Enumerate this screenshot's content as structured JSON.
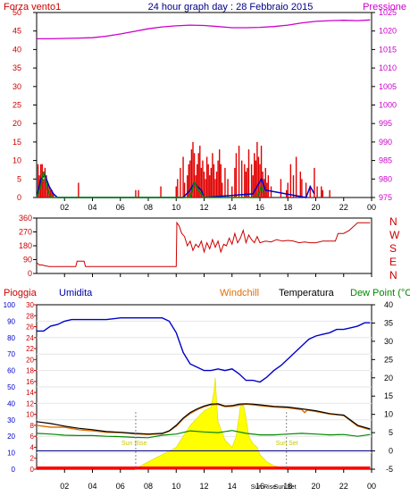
{
  "title": "24 hour graph day : 28 Febbraio 2015",
  "colors": {
    "wind": "#e00000",
    "gust": "#0000cc",
    "gust2": "#008800",
    "pressure": "#cc00cc",
    "direction": "#cc0000",
    "rain": "#ff0000",
    "humidity": "#0000cc",
    "windchill": "#e07000",
    "temperature": "#000000",
    "dewpoint": "#008800",
    "solar": "#ffff00",
    "frame": "#000000",
    "grid": "#c8c8c8",
    "baseline": "#000088"
  },
  "chart_data": [
    {
      "type": "bar",
      "title": "24 hour graph day : 28 Febbraio 2015",
      "left_label": "Forza vento1",
      "right_label": "Pressione",
      "hours": [
        "02",
        "04",
        "06",
        "08",
        "10",
        "12",
        "14",
        "16",
        "18",
        "20",
        "22",
        "00"
      ],
      "left_ticks": [
        "0",
        "5",
        "10",
        "15",
        "20",
        "25",
        "30",
        "35",
        "40",
        "45",
        "50"
      ],
      "right_ticks": [
        "975",
        "980",
        "985",
        "990",
        "995",
        "1000",
        "1005",
        "1010",
        "1015",
        "1020",
        "1025"
      ],
      "ylim_left": [
        0,
        50
      ],
      "ylim_right": [
        975,
        1025
      ],
      "series": [
        {
          "name": "Forza vento1",
          "kind": "bars",
          "x": [
            0.1,
            0.2,
            0.3,
            0.4,
            0.5,
            0.6,
            0.7,
            0.8,
            0.9,
            1.0,
            1.1,
            1.2,
            3.0,
            7.1,
            7.3,
            8.9,
            10.0,
            10.1,
            10.3,
            10.5,
            10.6,
            10.8,
            10.9,
            11.0,
            11.1,
            11.2,
            11.3,
            11.4,
            11.5,
            11.6,
            11.7,
            11.8,
            11.9,
            12.0,
            12.1,
            12.2,
            12.3,
            12.4,
            12.5,
            12.6,
            12.7,
            12.8,
            12.9,
            13.0,
            13.1,
            13.2,
            13.3,
            13.5,
            13.7,
            14.0,
            14.2,
            14.3,
            14.5,
            14.7,
            14.9,
            15.0,
            15.1,
            15.2,
            15.4,
            15.5,
            15.6,
            15.7,
            15.8,
            15.9,
            16.0,
            16.1,
            16.2,
            16.3,
            16.4,
            16.5,
            16.6,
            16.8,
            17.5,
            17.9,
            18.0,
            18.2,
            18.4,
            18.6,
            18.9,
            19.0,
            19.3,
            19.6,
            19.9,
            20.1,
            20.4,
            20.5,
            21.0
          ],
          "values": [
            9,
            6,
            9,
            9,
            5,
            8,
            6,
            4,
            3,
            2,
            2,
            1,
            4,
            2,
            2,
            3,
            3,
            5,
            8,
            11,
            4,
            6,
            9,
            10,
            13,
            15,
            12,
            6,
            9,
            12,
            14,
            8,
            10,
            7,
            5,
            11,
            9,
            6,
            8,
            12,
            9,
            5,
            7,
            10,
            13,
            9,
            4,
            8,
            5,
            3,
            8,
            12,
            14,
            10,
            9,
            7,
            8,
            13,
            9,
            6,
            12,
            10,
            15,
            11,
            9,
            14,
            7,
            5,
            8,
            4,
            6,
            3,
            5,
            2,
            4,
            9,
            6,
            11,
            7,
            5,
            4,
            3,
            8,
            3,
            3,
            2,
            2
          ]
        },
        {
          "name": "Gust",
          "kind": "line",
          "x": [
            0,
            0.3,
            0.6,
            0.9,
            1.2,
            1.5,
            10.5,
            11.0,
            11.3,
            11.5,
            11.8,
            12.0,
            15.5,
            15.8,
            16.1,
            16.4,
            19.3,
            19.6,
            19.9
          ],
          "values": [
            0,
            5,
            6,
            3,
            1,
            0,
            0,
            2,
            4,
            3,
            2,
            0,
            1,
            3,
            5,
            2,
            0,
            3,
            1
          ]
        },
        {
          "name": "Gust2",
          "kind": "line",
          "x": [
            0,
            0.3,
            0.5,
            0.8,
            1.0,
            11.0,
            11.3,
            11.6,
            12.0,
            15.8,
            16.1,
            16.3
          ],
          "values": [
            0,
            3,
            7,
            2,
            0,
            0,
            4,
            2,
            0,
            0,
            3,
            1
          ]
        },
        {
          "name": "Pressione",
          "kind": "line",
          "x": [
            0,
            1,
            2,
            3,
            4,
            5,
            6,
            7,
            8,
            9,
            10,
            11,
            12,
            13,
            14,
            15,
            16,
            17,
            18,
            19,
            20,
            21,
            22,
            23,
            23.9
          ],
          "values": [
            1017.9,
            1017.9,
            1018.0,
            1018.1,
            1018.2,
            1018.6,
            1019.2,
            1019.9,
            1020.6,
            1021.1,
            1021.4,
            1021.6,
            1021.5,
            1021.2,
            1020.9,
            1020.9,
            1021.0,
            1021.2,
            1021.6,
            1022.2,
            1022.6,
            1022.8,
            1022.9,
            1022.8,
            1023.0
          ]
        }
      ]
    },
    {
      "type": "line",
      "title": "",
      "left_ticks": [
        "0",
        "90",
        "180",
        "270",
        "360"
      ],
      "right_ticks": [
        "N",
        "W",
        "S",
        "E",
        "N"
      ],
      "hours": [
        "02",
        "04",
        "06",
        "08",
        "10",
        "12",
        "14",
        "16",
        "18",
        "20",
        "22",
        "00"
      ],
      "ylim": [
        0,
        360
      ],
      "series": [
        {
          "name": "Direction",
          "x": [
            0,
            0.2,
            0.4,
            0.6,
            0.9,
            1.2,
            2.0,
            2.8,
            2.9,
            3.0,
            3.4,
            3.5,
            4.0,
            5.0,
            6.0,
            7.0,
            8.0,
            9.0,
            10.0,
            10.05,
            10.2,
            10.4,
            10.6,
            10.8,
            11.0,
            11.2,
            11.4,
            11.6,
            11.8,
            12.0,
            12.2,
            12.4,
            12.6,
            12.8,
            13.0,
            13.2,
            13.4,
            13.6,
            13.8,
            14.0,
            14.2,
            14.4,
            14.6,
            14.8,
            15.0,
            15.2,
            15.4,
            15.6,
            15.8,
            16.0,
            16.4,
            16.8,
            17.2,
            17.6,
            18.0,
            18.4,
            18.8,
            19.2,
            19.6,
            20.0,
            20.5,
            21.0,
            21.4,
            21.6,
            22.0,
            22.4,
            23.0,
            23.9
          ],
          "values": [
            70,
            55,
            55,
            50,
            45,
            45,
            45,
            45,
            80,
            80,
            80,
            45,
            45,
            45,
            45,
            45,
            45,
            45,
            45,
            330,
            310,
            260,
            240,
            180,
            210,
            150,
            190,
            170,
            210,
            140,
            200,
            160,
            220,
            170,
            210,
            140,
            190,
            180,
            230,
            190,
            260,
            200,
            230,
            280,
            200,
            250,
            220,
            200,
            240,
            200,
            210,
            205,
            220,
            210,
            215,
            210,
            200,
            205,
            200,
            200,
            210,
            210,
            210,
            260,
            260,
            280,
            330,
            330
          ]
        }
      ]
    },
    {
      "type": "line",
      "title": "",
      "labels": [
        "Pioggia",
        "Umidita",
        "Windchill",
        "Temperatura",
        "Dew Point (°C"
      ],
      "hours": [
        "02",
        "04",
        "06",
        "08",
        "10",
        "12",
        "14",
        "16",
        "Sun Rise",
        "Sun Set",
        "18",
        "20",
        "22",
        "00"
      ],
      "rain_ticks": [
        "0",
        "2",
        "4",
        "6",
        "8",
        "10",
        "12",
        "14",
        "16",
        "18",
        "20",
        "22",
        "24",
        "26",
        "28",
        "30"
      ],
      "humidity_ticks": [
        "0",
        "10",
        "20",
        "30",
        "40",
        "50",
        "60",
        "70",
        "80",
        "90",
        "100"
      ],
      "temp_ticks": [
        "-5",
        "0",
        "5",
        "10",
        "15",
        "20",
        "25",
        "30",
        "35",
        "40"
      ],
      "sun_rise_hour": 7.1,
      "sun_set_hour": 17.9,
      "ylim_rain": [
        0,
        30
      ],
      "ylim_humidity": [
        0,
        100
      ],
      "ylim_temp": [
        -5,
        40
      ],
      "series": [
        {
          "name": "Umidita",
          "axis": "humidity",
          "x": [
            0,
            0.5,
            1,
            1.5,
            2,
            2.5,
            3,
            4,
            5,
            6,
            7,
            8,
            9,
            9.5,
            10,
            10.5,
            11,
            11.5,
            12,
            12.5,
            13,
            13.5,
            14,
            14.5,
            15,
            15.5,
            16,
            16.5,
            17,
            17.5,
            18,
            18.5,
            19,
            19.5,
            20,
            20.5,
            21,
            21.5,
            22,
            22.5,
            23,
            23.5,
            23.9
          ],
          "values": [
            84,
            84,
            87,
            88,
            90,
            91,
            91,
            91,
            91,
            92,
            92,
            92,
            92,
            90,
            83,
            71,
            64,
            62,
            60,
            60,
            61,
            60,
            61,
            58,
            54,
            54,
            53,
            56,
            60,
            63,
            67,
            71,
            75,
            79,
            81,
            82,
            83,
            85,
            85,
            86,
            87,
            89,
            89
          ]
        },
        {
          "name": "Temperatura",
          "axis": "temp",
          "x": [
            0,
            1,
            2,
            3,
            4,
            5,
            6,
            7,
            8,
            9,
            9.5,
            10,
            10.5,
            11,
            11.5,
            12,
            12.5,
            13,
            13.5,
            14,
            14.5,
            15,
            15.5,
            16,
            16.5,
            17,
            18,
            19,
            20,
            21,
            22,
            23,
            23.9
          ],
          "values": [
            8,
            7.5,
            6.8,
            6.2,
            5.8,
            5.3,
            5.1,
            4.8,
            4.6,
            4.8,
            5.5,
            7,
            9,
            10.5,
            11.5,
            12.3,
            12.8,
            12.9,
            12.3,
            12.4,
            12.8,
            12.9,
            12.8,
            12.6,
            12.4,
            12.2,
            12,
            11.5,
            11,
            10.2,
            9.8,
            7,
            6
          ]
        },
        {
          "name": "Windchill",
          "axis": "temp",
          "x": [
            0,
            1,
            2,
            3,
            4,
            5,
            6,
            7,
            8,
            9,
            9.5,
            10,
            10.5,
            11,
            11.5,
            12,
            12.5,
            13,
            13.5,
            14,
            14.5,
            15,
            15.5,
            16,
            16.5,
            17,
            18,
            19,
            19.2,
            19.4,
            20,
            21,
            22,
            23,
            23.9
          ],
          "values": [
            7,
            6.5,
            6.5,
            5.8,
            5.5,
            5.1,
            5.0,
            4.7,
            4.5,
            4.7,
            5.4,
            6.8,
            8.8,
            10.2,
            11.3,
            12.1,
            12.6,
            12.7,
            12.1,
            12.2,
            12.5,
            12.8,
            12.6,
            12.4,
            12.2,
            12.0,
            11.8,
            11.3,
            10.5,
            11.2,
            10.8,
            10.1,
            9.7,
            6.8,
            5.8
          ]
        },
        {
          "name": "Dew Point (°C",
          "axis": "temp",
          "x": [
            0,
            1,
            2,
            3,
            4,
            5,
            6,
            7,
            8,
            9,
            10,
            11,
            12,
            13,
            14,
            15,
            16,
            17,
            18,
            19,
            20,
            21,
            22,
            23,
            23.9
          ],
          "values": [
            4.8,
            4.6,
            4.3,
            4.2,
            4.2,
            4.0,
            3.9,
            3.7,
            3.6,
            4.3,
            4.6,
            5.5,
            5.2,
            5.0,
            5.6,
            4.8,
            4.4,
            4.4,
            4.6,
            4.8,
            4.6,
            4.4,
            4.5,
            4.0,
            4.5
          ]
        },
        {
          "name": "Solar",
          "axis": "temp",
          "kind": "area",
          "x": [
            7.1,
            7.5,
            8,
            8.5,
            9,
            9.5,
            10,
            10.5,
            11,
            11.5,
            12,
            12.5,
            12.7,
            12.8,
            12.9,
            13.0,
            13.2,
            13.5,
            14,
            14.3,
            14.6,
            14.8,
            15.0,
            15.2,
            15.5,
            15.8,
            16,
            16.5,
            17,
            17.5,
            17.9
          ],
          "values": [
            -5,
            -4,
            -3,
            -2,
            -1,
            0,
            1,
            4,
            7,
            9,
            11,
            12,
            16,
            20,
            13,
            8,
            6,
            3,
            1,
            4,
            12,
            13,
            9,
            4,
            2,
            1,
            -1,
            -3,
            -4,
            -4.5,
            -5
          ]
        },
        {
          "name": "Pioggia",
          "axis": "rain",
          "x": [
            0,
            23.9
          ],
          "values": [
            0,
            0
          ]
        }
      ]
    }
  ]
}
